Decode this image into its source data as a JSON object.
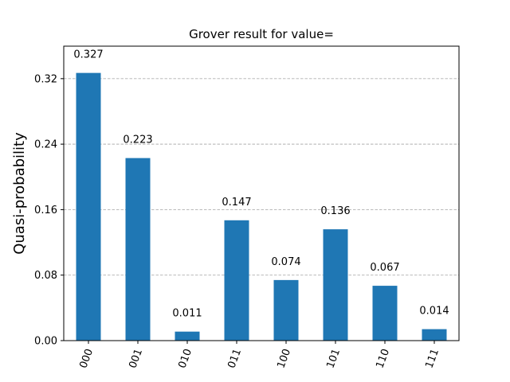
{
  "chart_data": {
    "type": "bar",
    "title": "Grover result for value=",
    "xlabel": "",
    "ylabel": "Quasi-probability",
    "categories": [
      "000",
      "001",
      "010",
      "011",
      "100",
      "101",
      "110",
      "111"
    ],
    "values": [
      0.327,
      0.223,
      0.011,
      0.147,
      0.074,
      0.136,
      0.067,
      0.014
    ],
    "value_labels": [
      "0.327",
      "0.223",
      "0.011",
      "0.147",
      "0.074",
      "0.136",
      "0.067",
      "0.014"
    ],
    "ylim": [
      0,
      0.3597
    ],
    "yticks": [
      0.0,
      0.08,
      0.16,
      0.24,
      0.32
    ],
    "ytick_labels": [
      "0.00",
      "0.08",
      "0.16",
      "0.24",
      "0.32"
    ],
    "x_tick_rotation_deg": 70,
    "grid": "y-dashed",
    "legend": "none",
    "colors": {
      "bar": "#1f77b4",
      "grid": "#b0b0b0",
      "axis": "#000000"
    }
  }
}
